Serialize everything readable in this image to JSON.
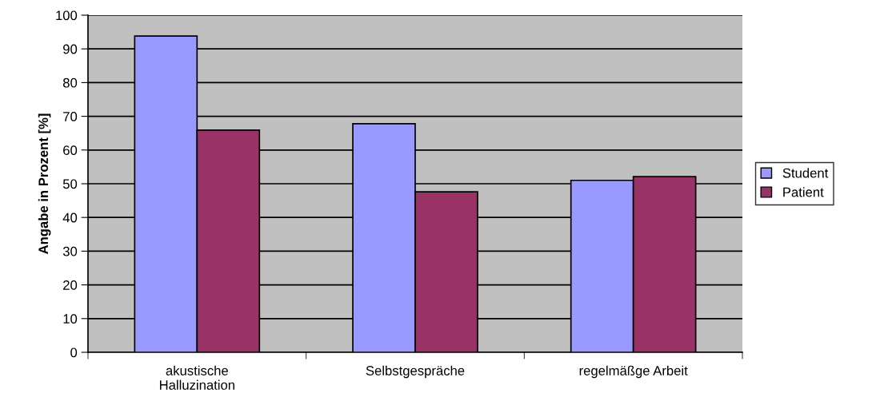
{
  "chart_data": {
    "type": "bar",
    "ylabel": "Angabe in Prozent [%]",
    "categories": [
      "akustische\nHalluzination",
      "Selbstgespräche",
      "regelmäßge Arbeit"
    ],
    "series": [
      {
        "name": "Student",
        "color": "#9999ff",
        "values": [
          93.8,
          67.8,
          51.0
        ]
      },
      {
        "name": "Patient",
        "color": "#993366",
        "values": [
          65.9,
          47.6,
          52.1
        ]
      }
    ],
    "ylim": [
      0,
      100
    ],
    "yticks": [
      0,
      10,
      20,
      30,
      40,
      50,
      60,
      70,
      80,
      90,
      100
    ],
    "grid": "y",
    "legend": "right"
  }
}
